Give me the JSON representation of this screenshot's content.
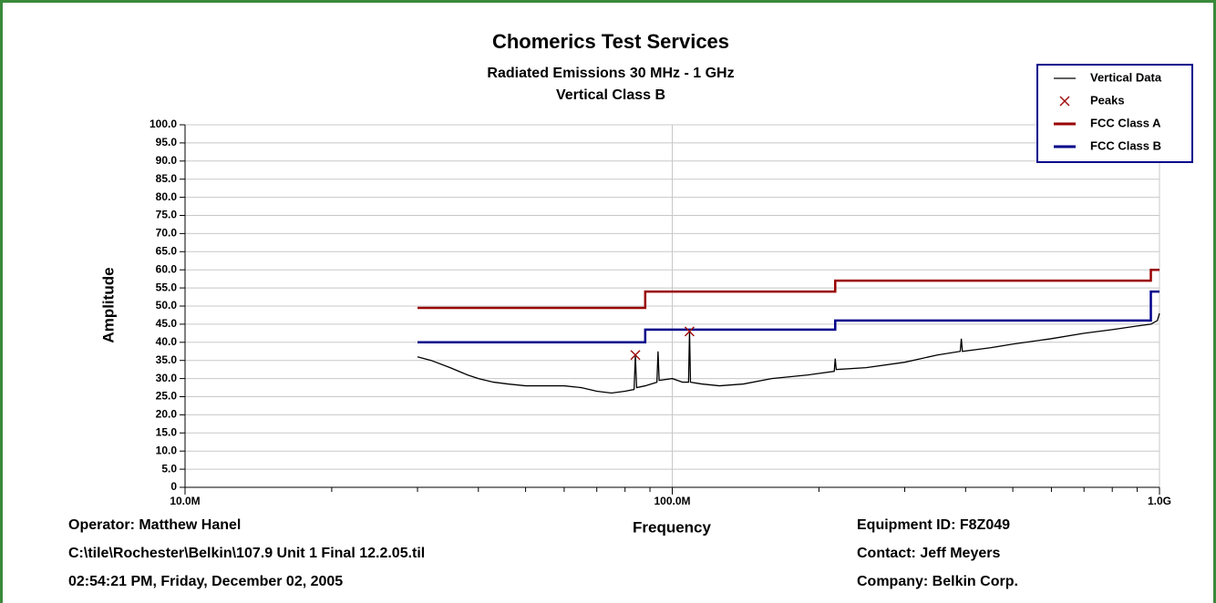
{
  "chart_data": {
    "type": "line",
    "title": "Chomerics Test Services",
    "subtitle": "Radiated Emissions 30 MHz - 1 GHz",
    "subtitle2": "Vertical Class B",
    "x_label": "Frequency",
    "y_label": "Amplitude",
    "xscale": "log",
    "xlim": [
      10000000,
      1000000000
    ],
    "xticks": [
      {
        "value": 10000000,
        "label": "10.0M"
      },
      {
        "value": 100000000,
        "label": "100.0M"
      },
      {
        "value": 1000000000,
        "label": "1.0G"
      }
    ],
    "xminorticks": [
      20000000,
      30000000,
      40000000,
      50000000,
      60000000,
      70000000,
      80000000,
      90000000,
      200000000,
      300000000,
      400000000,
      500000000,
      600000000,
      700000000,
      800000000,
      900000000
    ],
    "ylim": [
      0,
      100
    ],
    "yticks": [
      0,
      {
        "value": 5,
        "label": "5.0"
      },
      {
        "value": 10,
        "label": "10.0"
      },
      {
        "value": 15,
        "label": "15.0"
      },
      {
        "value": 20,
        "label": "20.0"
      },
      {
        "value": 25,
        "label": "25.0"
      },
      {
        "value": 30,
        "label": "30.0"
      },
      {
        "value": 35,
        "label": "35.0"
      },
      {
        "value": 40,
        "label": "40.0"
      },
      {
        "value": 45,
        "label": "45.0"
      },
      {
        "value": 50,
        "label": "50.0"
      },
      {
        "value": 55,
        "label": "55.0"
      },
      {
        "value": 60,
        "label": "60.0"
      },
      {
        "value": 65,
        "label": "65.0"
      },
      {
        "value": 70,
        "label": "70.0"
      },
      {
        "value": 75,
        "label": "75.0"
      },
      {
        "value": 80,
        "label": "80.0"
      },
      {
        "value": 85,
        "label": "85.0"
      },
      {
        "value": 90,
        "label": "90.0"
      },
      {
        "value": 95,
        "label": "95.0"
      },
      {
        "value": 100,
        "label": "100.0"
      }
    ],
    "grid": true,
    "legend": "top-right",
    "series": [
      {
        "name": "Vertical Data",
        "color": "#000000",
        "style": "line",
        "x": [
          30000000,
          32000000,
          35000000,
          38000000,
          40000000,
          43000000,
          46000000,
          50000000,
          55000000,
          60000000,
          65000000,
          70000000,
          75000000,
          80000000,
          83500000,
          84000000,
          84500000,
          88000000,
          93000000,
          93500000,
          94000000,
          100000000,
          105000000,
          108000000,
          108500000,
          109000000,
          115000000,
          125000000,
          140000000,
          160000000,
          190000000,
          215000000,
          216000000,
          217000000,
          250000000,
          300000000,
          350000000,
          390000000,
          392000000,
          394000000,
          450000000,
          500000000,
          600000000,
          700000000,
          800000000,
          900000000,
          960000000,
          990000000,
          1000000000
        ],
        "values": [
          36,
          35,
          33,
          31,
          30,
          29,
          28.5,
          28,
          28,
          28,
          27.5,
          26.5,
          26,
          26.5,
          27,
          36.5,
          27.5,
          28,
          29,
          37.5,
          29.5,
          30,
          29,
          29,
          43,
          29,
          28.5,
          28,
          28.5,
          30,
          31,
          32,
          35.5,
          32.5,
          33,
          34.5,
          36.5,
          37.5,
          41,
          37.5,
          38.5,
          39.5,
          41,
          42.5,
          43.5,
          44.5,
          45,
          46,
          48
        ]
      },
      {
        "name": "Peaks",
        "color": "#a01010",
        "style": "marker",
        "x": [
          84000000,
          108500000
        ],
        "values": [
          36.5,
          43
        ]
      },
      {
        "name": "FCC Class A",
        "color": "#990000",
        "style": "line",
        "x": [
          30000000,
          88000000,
          88000000,
          216000000,
          216000000,
          960000000,
          960000000,
          1000000000
        ],
        "values": [
          49.5,
          49.5,
          54,
          54,
          57,
          57,
          60,
          60
        ]
      },
      {
        "name": "FCC Class B",
        "color": "#00008b",
        "style": "line",
        "x": [
          30000000,
          88000000,
          88000000,
          216000000,
          216000000,
          960000000,
          960000000,
          1000000000
        ],
        "values": [
          40,
          40,
          43.5,
          43.5,
          46,
          46,
          54,
          54
        ]
      }
    ],
    "footer_left": [
      "Operator: Matthew Hanel",
      "C:\\tile\\Rochester\\Belkin\\107.9 Unit 1 Final 12.2.05.til",
      "02:54:21 PM, Friday, December 02, 2005"
    ],
    "footer_right": [
      "Equipment ID: F8Z049",
      "Contact: Jeff Meyers",
      "Company: Belkin Corp."
    ]
  }
}
